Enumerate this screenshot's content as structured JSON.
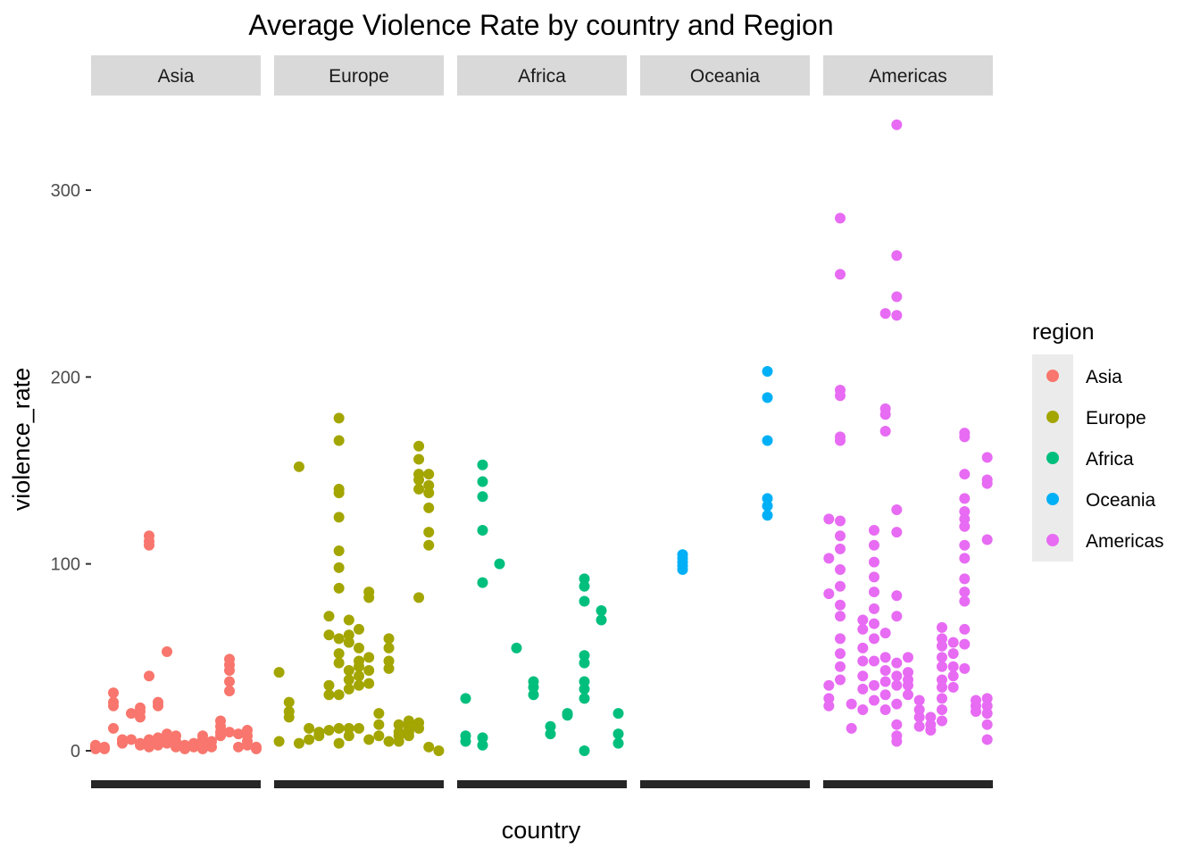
{
  "chart_data": {
    "type": "scatter",
    "title": "Average Violence Rate by country and Region",
    "xlabel": "country",
    "ylabel": "violence_rate",
    "ylim": [
      -10,
      350
    ],
    "yticks": [
      0,
      100,
      200,
      300
    ],
    "grid": false,
    "facet_by": "region",
    "legend": {
      "title": "region",
      "position": "right"
    },
    "colors": {
      "Asia": "#F8766D",
      "Europe": "#A3A500",
      "Africa": "#00BF7D",
      "Oceania": "#00B0F6",
      "Americas": "#E76BF3"
    },
    "facets": [
      {
        "name": "Asia",
        "points": [
          [
            0,
            3
          ],
          [
            0,
            2
          ],
          [
            0,
            1
          ],
          [
            1,
            2
          ],
          [
            1,
            1
          ],
          [
            2,
            31
          ],
          [
            2,
            26
          ],
          [
            2,
            24
          ],
          [
            2,
            12
          ],
          [
            3,
            6
          ],
          [
            3,
            5
          ],
          [
            3,
            4
          ],
          [
            4,
            6
          ],
          [
            4,
            20
          ],
          [
            5,
            21
          ],
          [
            5,
            23
          ],
          [
            5,
            18
          ],
          [
            5,
            4
          ],
          [
            5,
            3
          ],
          [
            6,
            115
          ],
          [
            6,
            112
          ],
          [
            6,
            110
          ],
          [
            6,
            40
          ],
          [
            6,
            6
          ],
          [
            6,
            4
          ],
          [
            6,
            2
          ],
          [
            7,
            26
          ],
          [
            7,
            24
          ],
          [
            7,
            7
          ],
          [
            7,
            3
          ],
          [
            8,
            9
          ],
          [
            8,
            6
          ],
          [
            8,
            4
          ],
          [
            8,
            53
          ],
          [
            9,
            8
          ],
          [
            9,
            5
          ],
          [
            9,
            2
          ],
          [
            10,
            3
          ],
          [
            10,
            1
          ],
          [
            11,
            4
          ],
          [
            11,
            2
          ],
          [
            12,
            8
          ],
          [
            12,
            6
          ],
          [
            12,
            3
          ],
          [
            12,
            1
          ],
          [
            13,
            5
          ],
          [
            13,
            2
          ],
          [
            14,
            16
          ],
          [
            14,
            13
          ],
          [
            14,
            10
          ],
          [
            14,
            8
          ],
          [
            15,
            49
          ],
          [
            15,
            46
          ],
          [
            15,
            43
          ],
          [
            15,
            37
          ],
          [
            15,
            32
          ],
          [
            15,
            10
          ],
          [
            16,
            9
          ],
          [
            16,
            2
          ],
          [
            17,
            11
          ],
          [
            17,
            8
          ],
          [
            17,
            5
          ],
          [
            17,
            3
          ],
          [
            18,
            2
          ],
          [
            18,
            1
          ]
        ]
      },
      {
        "name": "Europe",
        "points": [
          [
            0,
            42
          ],
          [
            0,
            5
          ],
          [
            1,
            26
          ],
          [
            1,
            21
          ],
          [
            1,
            18
          ],
          [
            2,
            152
          ],
          [
            2,
            4
          ],
          [
            3,
            6
          ],
          [
            3,
            12
          ],
          [
            4,
            10
          ],
          [
            4,
            8
          ],
          [
            5,
            30
          ],
          [
            5,
            35
          ],
          [
            5,
            62
          ],
          [
            5,
            72
          ],
          [
            5,
            11
          ],
          [
            6,
            178
          ],
          [
            6,
            166
          ],
          [
            6,
            140
          ],
          [
            6,
            138
          ],
          [
            6,
            125
          ],
          [
            6,
            107
          ],
          [
            6,
            98
          ],
          [
            6,
            87
          ],
          [
            6,
            60
          ],
          [
            6,
            52
          ],
          [
            6,
            47
          ],
          [
            6,
            30
          ],
          [
            6,
            12
          ],
          [
            6,
            4
          ],
          [
            7,
            70
          ],
          [
            7,
            62
          ],
          [
            7,
            58
          ],
          [
            7,
            43
          ],
          [
            7,
            38
          ],
          [
            7,
            33
          ],
          [
            7,
            12
          ],
          [
            7,
            8
          ],
          [
            8,
            65
          ],
          [
            8,
            55
          ],
          [
            8,
            48
          ],
          [
            8,
            45
          ],
          [
            8,
            40
          ],
          [
            8,
            35
          ],
          [
            8,
            12
          ],
          [
            9,
            85
          ],
          [
            9,
            82
          ],
          [
            9,
            50
          ],
          [
            9,
            43
          ],
          [
            9,
            36
          ],
          [
            9,
            6
          ],
          [
            10,
            20
          ],
          [
            10,
            14
          ],
          [
            10,
            8
          ],
          [
            11,
            60
          ],
          [
            11,
            55
          ],
          [
            11,
            48
          ],
          [
            11,
            44
          ],
          [
            11,
            5
          ],
          [
            12,
            14
          ],
          [
            12,
            10
          ],
          [
            12,
            8
          ],
          [
            12,
            5
          ],
          [
            13,
            16
          ],
          [
            13,
            14
          ],
          [
            13,
            12
          ],
          [
            13,
            10
          ],
          [
            13,
            8
          ],
          [
            14,
            163
          ],
          [
            14,
            156
          ],
          [
            14,
            148
          ],
          [
            14,
            145
          ],
          [
            14,
            140
          ],
          [
            14,
            82
          ],
          [
            14,
            15
          ],
          [
            14,
            12
          ],
          [
            15,
            148
          ],
          [
            15,
            142
          ],
          [
            15,
            138
          ],
          [
            15,
            130
          ],
          [
            15,
            117
          ],
          [
            15,
            110
          ],
          [
            15,
            2
          ],
          [
            16,
            0
          ]
        ]
      },
      {
        "name": "Africa",
        "points": [
          [
            0,
            28
          ],
          [
            0,
            8
          ],
          [
            0,
            5
          ],
          [
            1,
            153
          ],
          [
            1,
            144
          ],
          [
            1,
            136
          ],
          [
            1,
            118
          ],
          [
            1,
            90
          ],
          [
            1,
            7
          ],
          [
            1,
            3
          ],
          [
            2,
            100
          ],
          [
            3,
            55
          ],
          [
            4,
            37
          ],
          [
            4,
            34
          ],
          [
            4,
            30
          ],
          [
            5,
            13
          ],
          [
            5,
            9
          ],
          [
            6,
            19
          ],
          [
            6,
            20
          ],
          [
            7,
            92
          ],
          [
            7,
            88
          ],
          [
            7,
            80
          ],
          [
            7,
            51
          ],
          [
            7,
            47
          ],
          [
            7,
            37
          ],
          [
            7,
            33
          ],
          [
            7,
            28
          ],
          [
            7,
            0
          ],
          [
            8,
            75
          ],
          [
            8,
            70
          ],
          [
            9,
            20
          ],
          [
            9,
            9
          ],
          [
            9,
            4
          ]
        ]
      },
      {
        "name": "Oceania",
        "points": [
          [
            0,
            105
          ],
          [
            0,
            103
          ],
          [
            0,
            101
          ],
          [
            0,
            99
          ],
          [
            0,
            97
          ],
          [
            1,
            203
          ],
          [
            1,
            189
          ],
          [
            1,
            166
          ],
          [
            1,
            135
          ],
          [
            1,
            131
          ],
          [
            1,
            126
          ]
        ]
      },
      {
        "name": "Americas",
        "points": [
          [
            0,
            35
          ],
          [
            0,
            28
          ],
          [
            0,
            24
          ],
          [
            0,
            124
          ],
          [
            0,
            103
          ],
          [
            0,
            84
          ],
          [
            1,
            285
          ],
          [
            1,
            255
          ],
          [
            1,
            193
          ],
          [
            1,
            190
          ],
          [
            1,
            168
          ],
          [
            1,
            166
          ],
          [
            1,
            123
          ],
          [
            1,
            115
          ],
          [
            1,
            108
          ],
          [
            1,
            97
          ],
          [
            1,
            88
          ],
          [
            1,
            78
          ],
          [
            1,
            72
          ],
          [
            1,
            60
          ],
          [
            1,
            52
          ],
          [
            1,
            45
          ],
          [
            1,
            38
          ],
          [
            2,
            25
          ],
          [
            2,
            12
          ],
          [
            3,
            70
          ],
          [
            3,
            65
          ],
          [
            3,
            55
          ],
          [
            3,
            48
          ],
          [
            3,
            40
          ],
          [
            3,
            33
          ],
          [
            3,
            22
          ],
          [
            4,
            118
          ],
          [
            4,
            110
          ],
          [
            4,
            101
          ],
          [
            4,
            93
          ],
          [
            4,
            85
          ],
          [
            4,
            76
          ],
          [
            4,
            68
          ],
          [
            4,
            60
          ],
          [
            4,
            48
          ],
          [
            4,
            35
          ],
          [
            4,
            27
          ],
          [
            5,
            234
          ],
          [
            5,
            183
          ],
          [
            5,
            180
          ],
          [
            5,
            171
          ],
          [
            5,
            63
          ],
          [
            5,
            50
          ],
          [
            5,
            43
          ],
          [
            5,
            37
          ],
          [
            5,
            30
          ],
          [
            5,
            22
          ],
          [
            6,
            335
          ],
          [
            6,
            265
          ],
          [
            6,
            243
          ],
          [
            6,
            233
          ],
          [
            6,
            129
          ],
          [
            6,
            117
          ],
          [
            6,
            83
          ],
          [
            6,
            72
          ],
          [
            6,
            47
          ],
          [
            6,
            40
          ],
          [
            6,
            35
          ],
          [
            6,
            25
          ],
          [
            6,
            14
          ],
          [
            6,
            8
          ],
          [
            6,
            5
          ],
          [
            7,
            50
          ],
          [
            7,
            42
          ],
          [
            7,
            38
          ],
          [
            7,
            35
          ],
          [
            7,
            30
          ],
          [
            8,
            27
          ],
          [
            8,
            22
          ],
          [
            8,
            18
          ],
          [
            8,
            13
          ],
          [
            9,
            18
          ],
          [
            9,
            14
          ],
          [
            9,
            11
          ],
          [
            10,
            66
          ],
          [
            10,
            60
          ],
          [
            10,
            56
          ],
          [
            10,
            50
          ],
          [
            10,
            45
          ],
          [
            10,
            38
          ],
          [
            10,
            34
          ],
          [
            10,
            28
          ],
          [
            10,
            22
          ],
          [
            10,
            16
          ],
          [
            11,
            58
          ],
          [
            11,
            52
          ],
          [
            11,
            45
          ],
          [
            11,
            40
          ],
          [
            11,
            34
          ],
          [
            12,
            170
          ],
          [
            12,
            168
          ],
          [
            12,
            148
          ],
          [
            12,
            135
          ],
          [
            12,
            128
          ],
          [
            12,
            124
          ],
          [
            12,
            120
          ],
          [
            12,
            110
          ],
          [
            12,
            103
          ],
          [
            12,
            92
          ],
          [
            12,
            85
          ],
          [
            12,
            80
          ],
          [
            12,
            65
          ],
          [
            12,
            57
          ],
          [
            12,
            44
          ],
          [
            13,
            27
          ],
          [
            13,
            24
          ],
          [
            13,
            21
          ],
          [
            14,
            157
          ],
          [
            14,
            145
          ],
          [
            14,
            143
          ],
          [
            14,
            113
          ],
          [
            14,
            28
          ],
          [
            14,
            24
          ],
          [
            14,
            20
          ],
          [
            14,
            14
          ],
          [
            14,
            6
          ]
        ]
      }
    ]
  }
}
